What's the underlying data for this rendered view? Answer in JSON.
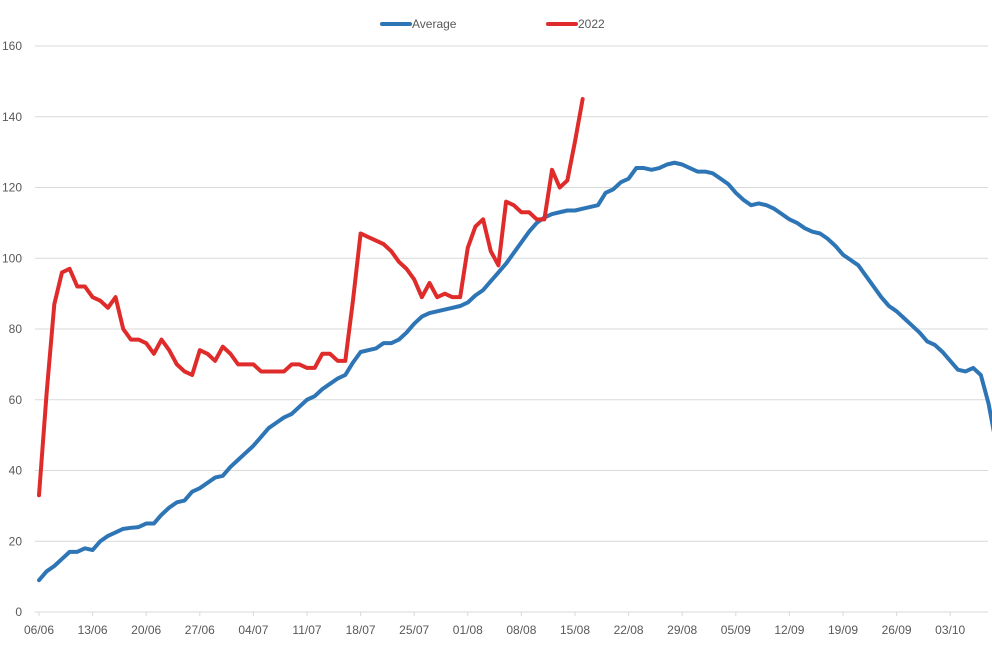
{
  "chart_data": {
    "type": "line",
    "title": "",
    "xlabel": "",
    "ylabel": "",
    "ylim": [
      0,
      160
    ],
    "yticks": [
      0,
      20,
      40,
      60,
      80,
      100,
      120,
      140,
      160
    ],
    "xrange_days_label": "06/06 to 09/10",
    "x_tick_labels": [
      "06/06",
      "13/06",
      "20/06",
      "27/06",
      "04/07",
      "11/07",
      "18/07",
      "25/07",
      "01/08",
      "08/08",
      "15/08",
      "22/08",
      "29/08",
      "05/09",
      "12/09",
      "19/09",
      "26/09",
      "03/10"
    ],
    "grid": true,
    "legend": {
      "position": "top-center"
    },
    "series": [
      {
        "name": "Average",
        "color": "#2e75b6",
        "x_dates": [
          "06/06",
          "07/06",
          "08/06",
          "09/06",
          "10/06",
          "11/06",
          "12/06",
          "13/06",
          "14/06",
          "15/06",
          "16/06",
          "17/06",
          "18/06",
          "19/06",
          "20/06",
          "21/06",
          "22/06",
          "23/06",
          "24/06",
          "25/06",
          "26/06",
          "27/06",
          "28/06",
          "29/06",
          "30/06",
          "01/07",
          "02/07",
          "03/07",
          "04/07",
          "05/07",
          "06/07",
          "07/07",
          "08/07",
          "09/07",
          "10/07",
          "11/07",
          "12/07",
          "13/07",
          "14/07",
          "15/07",
          "16/07",
          "17/07",
          "18/07",
          "19/07",
          "20/07",
          "21/07",
          "22/07",
          "23/07",
          "24/07",
          "25/07",
          "26/07",
          "27/07",
          "28/07",
          "29/07",
          "30/07",
          "31/07",
          "01/08",
          "02/08",
          "03/08",
          "04/08",
          "05/08",
          "06/08",
          "07/08",
          "08/08",
          "09/08",
          "10/08",
          "11/08",
          "12/08",
          "13/08",
          "14/08",
          "15/08",
          "16/08",
          "17/08",
          "18/08",
          "19/08",
          "20/08",
          "21/08",
          "22/08",
          "23/08",
          "24/08",
          "25/08",
          "26/08",
          "27/08",
          "28/08",
          "29/08",
          "30/08",
          "31/08",
          "01/09",
          "02/09",
          "03/09",
          "04/09",
          "05/09",
          "06/09",
          "07/09",
          "08/09",
          "09/09",
          "10/09",
          "11/09",
          "12/09",
          "13/09",
          "14/09",
          "15/09",
          "16/09",
          "17/09",
          "18/09",
          "19/09",
          "20/09",
          "21/09",
          "22/09",
          "23/09",
          "24/09",
          "25/09",
          "26/09",
          "27/09",
          "28/09",
          "29/09",
          "30/09",
          "01/10",
          "02/10",
          "03/10",
          "04/10",
          "05/10",
          "06/10",
          "07/10",
          "08/10",
          "09/10"
        ],
        "values": [
          9,
          11.5,
          13,
          15,
          17,
          17,
          18,
          17.5,
          20,
          21.5,
          22.5,
          23.5,
          23.8,
          24,
          25,
          25,
          27.5,
          29.5,
          31,
          31.5,
          34,
          35,
          36.5,
          38,
          38.5,
          41,
          43,
          45,
          47,
          49.5,
          52,
          53.5,
          55,
          56,
          58,
          60,
          61,
          63,
          64.5,
          66,
          67,
          70.5,
          73.5,
          74,
          74.5,
          76,
          76,
          77,
          79,
          81.5,
          83.5,
          84.5,
          85,
          85.5,
          86,
          86.5,
          87.5,
          89.5,
          91,
          93.5,
          96,
          98.5,
          101.5,
          104.5,
          107.5,
          110,
          111.5,
          112.5,
          113,
          113.5,
          113.5,
          114,
          114.5,
          115,
          118.5,
          119.5,
          121.5,
          122.5,
          125.5,
          125.5,
          125,
          125.5,
          126.5,
          127,
          126.5,
          125.5,
          124.5,
          124.5,
          124,
          122.5,
          121,
          118.5,
          116.5,
          115,
          115.5,
          115,
          114,
          112.5,
          111,
          110,
          108.5,
          107.5,
          107,
          105.5,
          103.5,
          101,
          99.5,
          98,
          95,
          92,
          89,
          86.5,
          85,
          83,
          81,
          79,
          76.5,
          75.5,
          73.5,
          71,
          68.5,
          68,
          69,
          67,
          59,
          47.5
        ]
      },
      {
        "name": "2022",
        "color": "#e02b2b",
        "x_dates": [
          "06/06",
          "07/06",
          "08/06",
          "09/06",
          "10/06",
          "11/06",
          "12/06",
          "13/06",
          "14/06",
          "15/06",
          "16/06",
          "17/06",
          "18/06",
          "19/06",
          "20/06",
          "21/06",
          "22/06",
          "23/06",
          "24/06",
          "25/06",
          "26/06",
          "27/06",
          "28/06",
          "29/06",
          "30/06",
          "01/07",
          "02/07",
          "03/07",
          "04/07",
          "05/07",
          "06/07",
          "07/07",
          "08/07",
          "09/07",
          "10/07",
          "11/07",
          "12/07",
          "13/07",
          "14/07",
          "15/07",
          "16/07",
          "17/07",
          "18/07",
          "19/07",
          "20/07",
          "21/07",
          "22/07",
          "23/07",
          "24/07",
          "25/07",
          "26/07",
          "27/07",
          "28/07",
          "29/07",
          "30/07",
          "31/07",
          "01/08",
          "02/08",
          "03/08",
          "04/08",
          "05/08",
          "06/08",
          "07/08",
          "08/08",
          "09/08",
          "10/08",
          "11/08",
          "12/08",
          "13/08",
          "14/08",
          "15/08",
          "16/08",
          "17/08"
        ],
        "values": [
          33,
          62,
          87,
          96,
          97,
          92,
          92,
          89,
          88,
          86,
          89,
          80,
          77,
          77,
          76,
          73,
          77,
          74,
          70,
          68,
          67,
          74,
          73,
          71,
          75,
          73,
          70,
          70,
          70,
          68,
          68,
          68,
          68,
          70,
          70,
          69,
          69,
          73,
          73,
          71,
          71,
          88,
          107,
          106,
          105,
          104,
          102,
          99,
          97,
          94,
          89,
          93,
          89,
          90,
          89,
          89,
          103,
          109,
          111,
          102,
          98,
          116,
          115,
          113,
          113,
          111,
          111,
          125,
          120,
          122,
          133,
          145,
          null
        ]
      }
    ]
  }
}
